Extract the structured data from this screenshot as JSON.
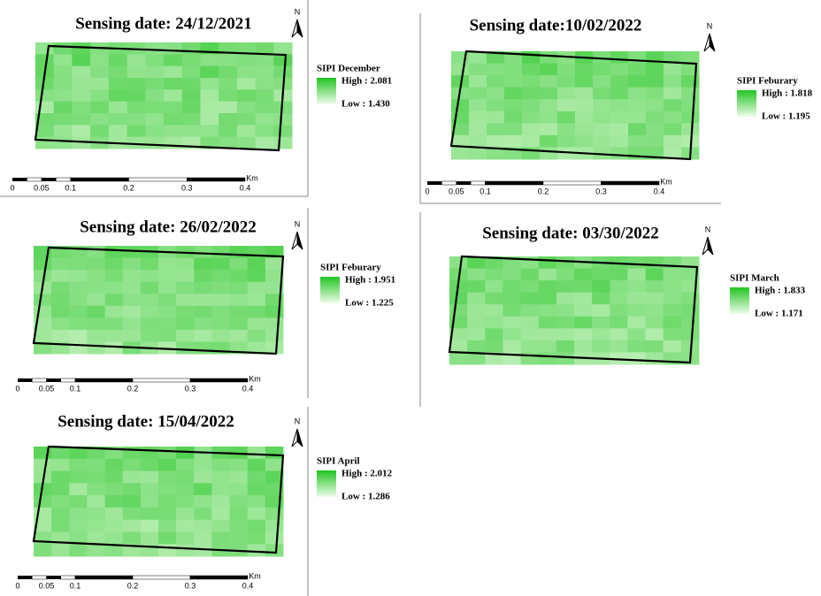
{
  "panels": [
    {
      "title": "Sensing date: 24/12/2021",
      "legend_title": "SIPI December",
      "high": "High : 2.081",
      "low": "Low : 1.430",
      "north": "N",
      "scale_labels": [
        "0",
        "0.05",
        "0.1",
        "0.2",
        "0.3",
        "0.4"
      ],
      "scale_unit": "Km"
    },
    {
      "title": "Sensing date:10/02/2022",
      "legend_title": "SIPI Feburary",
      "high": "High : 1.818",
      "low": "Low : 1.195",
      "north": "N",
      "scale_labels": [
        "0",
        "0.05",
        "0.1",
        "0.2",
        "0.3",
        "0.4"
      ],
      "scale_unit": "Km"
    },
    {
      "title": "Sensing date: 26/02/2022",
      "legend_title": "SIPI Feburary",
      "high": "High : 1.951",
      "low": "Low : 1.225",
      "north": "N",
      "scale_labels": [
        "0",
        "0.05",
        "0.1",
        "0.2",
        "0.3",
        "0.4"
      ],
      "scale_unit": "Km"
    },
    {
      "title": "Sensing date: 03/30/2022",
      "legend_title": "SIPI March",
      "high": "High : 1.833",
      "low": "Low : 1.171",
      "north": "N"
    },
    {
      "title": "Sensing date: 15/04/2022",
      "legend_title": "SIPI April",
      "high": "High : 2.012",
      "low": "Low : 1.286",
      "north": "N",
      "scale_labels": [
        "0",
        "0.05",
        "0.1",
        "0.2",
        "0.3",
        "0.4"
      ],
      "scale_unit": "Km"
    }
  ]
}
